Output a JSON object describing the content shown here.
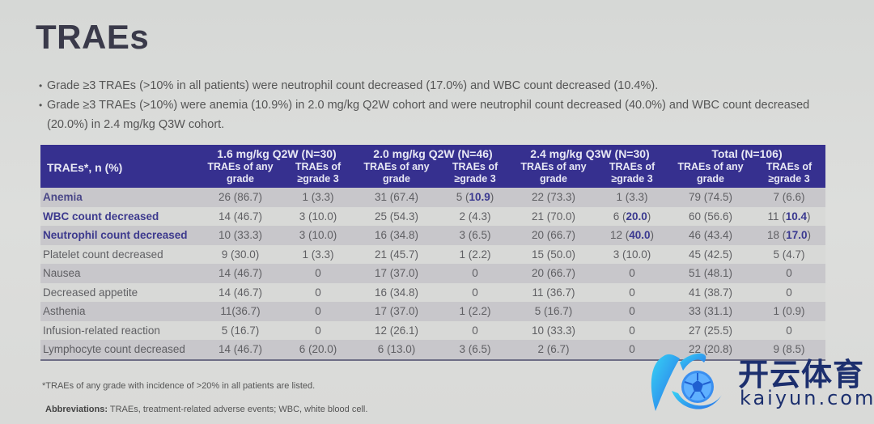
{
  "title": "TRAEs",
  "bullets": [
    "Grade ≥3 TRAEs (>10% in all patients) were neutrophil count decreased (17.0%) and WBC count decreased (10.4%).",
    "Grade ≥3 TRAEs (>10%) were anemia (10.9%) in 2.0 mg/kg Q2W cohort and were neutrophil count decreased (40.0%) and WBC count decreased (20.0%) in 2.4 mg/kg Q3W cohort."
  ],
  "table": {
    "corner_header": "TRAEs*, n (%)",
    "groups": [
      {
        "label": "1.6 mg/kg Q2W (N=30)"
      },
      {
        "label": "2.0 mg/kg Q2W (N=46)"
      },
      {
        "label": "2.4 mg/kg Q3W (N=30)"
      },
      {
        "label": "Total (N=106)"
      }
    ],
    "subheaders": {
      "any": "TRAEs of any grade",
      "g3": "TRAEs of ≥grade 3"
    },
    "rows": [
      {
        "label": "Anemia",
        "highlight": true,
        "cells": [
          "26 (86.7)",
          "1 (3.3)",
          "31 (67.4)",
          "5 (10.9)",
          "22 (73.3)",
          "1 (3.3)",
          "79 (74.5)",
          "7 (6.6)"
        ]
      },
      {
        "label": "WBC count decreased",
        "highlight": true,
        "cells": [
          "14 (46.7)",
          "3 (10.0)",
          "25 (54.3)",
          "2 (4.3)",
          "21 (70.0)",
          "6 (20.0)",
          "60 (56.6)",
          "11 (10.4)"
        ]
      },
      {
        "label": "Neutrophil count decreased",
        "highlight": true,
        "cells": [
          "10 (33.3)",
          "3 (10.0)",
          "16 (34.8)",
          "3 (6.5)",
          "20 (66.7)",
          "12 (40.0)",
          "46 (43.4)",
          "18 (17.0)"
        ]
      },
      {
        "label": "Platelet count decreased",
        "highlight": false,
        "cells": [
          "9 (30.0)",
          "1 (3.3)",
          "21 (45.7)",
          "1 (2.2)",
          "15 (50.0)",
          "3 (10.0)",
          "45 (42.5)",
          "5 (4.7)"
        ]
      },
      {
        "label": "Nausea",
        "highlight": false,
        "cells": [
          "14 (46.7)",
          "0",
          "17 (37.0)",
          "0",
          "20 (66.7)",
          "0",
          "51 (48.1)",
          "0"
        ]
      },
      {
        "label": "Decreased appetite",
        "highlight": false,
        "cells": [
          "14 (46.7)",
          "0",
          "16 (34.8)",
          "0",
          "11 (36.7)",
          "0",
          "41 (38.7)",
          "0"
        ]
      },
      {
        "label": "Asthenia",
        "highlight": false,
        "cells": [
          "11(36.7)",
          "0",
          "17 (37.0)",
          "1 (2.2)",
          "5 (16.7)",
          "0",
          "33 (31.1)",
          "1 (0.9)"
        ]
      },
      {
        "label": "Infusion-related reaction",
        "highlight": false,
        "cells": [
          "5 (16.7)",
          "0",
          "12 (26.1)",
          "0",
          "10 (33.3)",
          "0",
          "27 (25.5)",
          "0"
        ]
      },
      {
        "label": "Lymphocyte count decreased",
        "highlight": false,
        "cells": [
          "14 (46.7)",
          "6 (20.0)",
          "6 (13.0)",
          "3 (6.5)",
          "2 (6.7)",
          "0",
          "22 (20.8)",
          "9 (8.5)"
        ]
      }
    ],
    "bold_values": {
      "0.3": "10.9",
      "1.5": "20.0",
      "1.7": "10.4",
      "2.5": "40.0",
      "2.7": "17.0"
    }
  },
  "footnote": "*TRAEs of any grade with incidence of >20% in all patients are listed.",
  "abbreviations": {
    "label": "Abbreviations:",
    "text": " TRAEs, treatment-related adverse events; WBC, white blood cell."
  },
  "watermark": {
    "brand_cn": "开云体育",
    "brand_en": "kaiyun.com",
    "icon": "k-soccer-ball-logo"
  },
  "colors": {
    "header_bg": "#36308f",
    "highlight_text": "#3d3a8e",
    "watermark_text": "#1c2f6e"
  }
}
